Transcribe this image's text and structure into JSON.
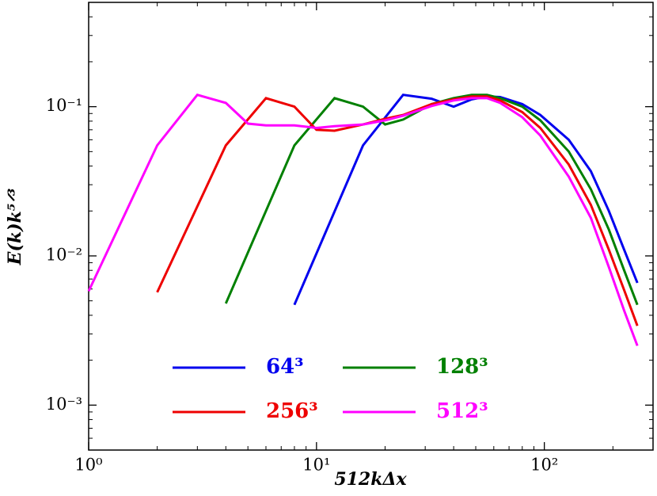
{
  "chart_data": {
    "type": "line",
    "xlabel": "512kΔx",
    "ylabel": "E(k)k⁵ᐟ³",
    "xscale": "log",
    "yscale": "log",
    "xlim": [
      1,
      300
    ],
    "ylim": [
      0.0005,
      0.5
    ],
    "xticks": [
      {
        "value": 1,
        "label": "10⁰"
      },
      {
        "value": 10,
        "label": "10¹"
      },
      {
        "value": 100,
        "label": "10²"
      }
    ],
    "yticks": [
      {
        "value": 0.001,
        "label": "10⁻³"
      },
      {
        "value": 0.01,
        "label": "10⁻²"
      },
      {
        "value": 0.1,
        "label": "10⁻¹"
      }
    ],
    "legend": "lower center",
    "series": [
      {
        "name": "64³",
        "color": "#0000ee",
        "x": [
          8,
          16,
          24,
          32,
          40,
          48,
          56,
          64,
          80,
          96,
          128,
          160,
          192,
          224,
          256
        ],
        "values": [
          0.0047,
          0.055,
          0.12,
          0.113,
          0.1,
          0.112,
          0.117,
          0.116,
          0.104,
          0.088,
          0.06,
          0.037,
          0.02,
          0.011,
          0.0066
        ]
      },
      {
        "name": "128³",
        "color": "#008000",
        "x": [
          4,
          8,
          12,
          16,
          20,
          24,
          32,
          40,
          48,
          56,
          64,
          80,
          96,
          128,
          160,
          192,
          224,
          256
        ],
        "values": [
          0.0048,
          0.055,
          0.114,
          0.1,
          0.076,
          0.082,
          0.104,
          0.114,
          0.12,
          0.12,
          0.114,
          0.1,
          0.081,
          0.05,
          0.028,
          0.015,
          0.008,
          0.0047
        ]
      },
      {
        "name": "256³",
        "color": "#ee0000",
        "x": [
          2,
          4,
          6,
          8,
          10,
          12,
          16,
          20,
          24,
          32,
          40,
          48,
          56,
          64,
          80,
          96,
          128,
          160,
          192,
          224,
          256
        ],
        "values": [
          0.0057,
          0.055,
          0.114,
          0.1,
          0.07,
          0.069,
          0.076,
          0.083,
          0.088,
          0.104,
          0.112,
          0.117,
          0.117,
          0.11,
          0.092,
          0.072,
          0.041,
          0.022,
          0.011,
          0.0059,
          0.0034
        ]
      },
      {
        "name": "512³",
        "color": "#ff00ff",
        "x": [
          1,
          2,
          3,
          4,
          5,
          6,
          8,
          10,
          12,
          16,
          20,
          24,
          32,
          40,
          48,
          56,
          64,
          80,
          96,
          128,
          160,
          192,
          224,
          256
        ],
        "values": [
          0.0058,
          0.055,
          0.12,
          0.106,
          0.077,
          0.075,
          0.075,
          0.072,
          0.074,
          0.076,
          0.081,
          0.087,
          0.101,
          0.11,
          0.114,
          0.114,
          0.106,
          0.085,
          0.064,
          0.034,
          0.018,
          0.0084,
          0.0043,
          0.0025
        ]
      }
    ]
  }
}
